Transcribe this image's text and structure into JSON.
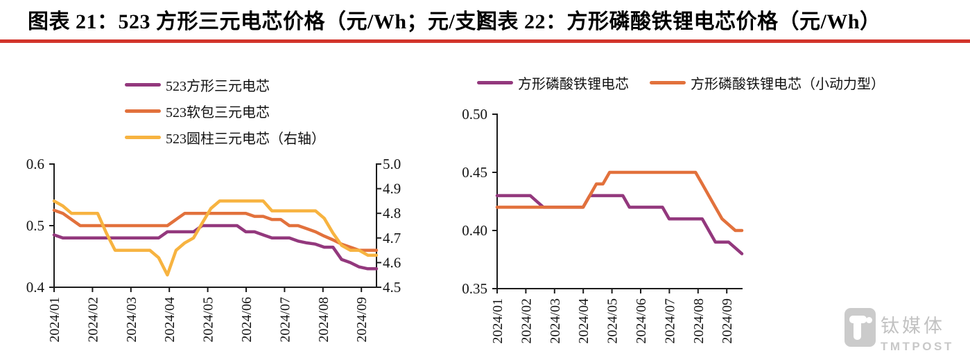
{
  "rule_color": "#d2342b",
  "axis_color": "#1b1b1b",
  "watermark": {
    "cn": "钛媒体",
    "en": "TMTPOST"
  },
  "chart_data": [
    {
      "type": "line",
      "title": "图表 21：523 方形三元电芯价格（元/Wh；元/支）",
      "legend_position": "top-left-vertical",
      "grid": false,
      "x_tick_labels": [
        "2024/01",
        "2024/02",
        "2024/03",
        "2024/04",
        "2024/05",
        "2024/06",
        "2024/07",
        "2024/08",
        "2024/09"
      ],
      "left_axis": {
        "min": 0.4,
        "max": 0.6,
        "tick_labels": [
          "0.6",
          "0.5",
          "0.4"
        ]
      },
      "right_axis": {
        "min": 4.5,
        "max": 5.0,
        "tick_labels": [
          "5.0",
          "4.9",
          "4.8",
          "4.7",
          "4.6",
          "4.5"
        ]
      },
      "series": [
        {
          "name": "523方形三元电芯",
          "axis": "left",
          "color": "#93387d",
          "values": [
            0.485,
            0.48,
            0.48,
            0.48,
            0.48,
            0.48,
            0.48,
            0.48,
            0.48,
            0.48,
            0.48,
            0.48,
            0.48,
            0.49,
            0.49,
            0.49,
            0.49,
            0.5,
            0.5,
            0.5,
            0.5,
            0.5,
            0.49,
            0.49,
            0.485,
            0.48,
            0.48,
            0.48,
            0.475,
            0.472,
            0.47,
            0.465,
            0.465,
            0.445,
            0.44,
            0.433,
            0.43,
            0.43
          ]
        },
        {
          "name": "523软包三元电芯",
          "axis": "left",
          "color": "#e2713c",
          "values": [
            0.525,
            0.52,
            0.51,
            0.5,
            0.5,
            0.5,
            0.5,
            0.5,
            0.5,
            0.5,
            0.5,
            0.5,
            0.5,
            0.5,
            0.51,
            0.52,
            0.52,
            0.52,
            0.52,
            0.52,
            0.52,
            0.52,
            0.52,
            0.515,
            0.515,
            0.51,
            0.51,
            0.5,
            0.5,
            0.495,
            0.49,
            0.483,
            0.477,
            0.47,
            0.465,
            0.46,
            0.46,
            0.46
          ]
        },
        {
          "name": "523圆柱三元电芯（右轴）",
          "axis": "right",
          "color": "#f7b340",
          "values": [
            4.85,
            4.83,
            4.8,
            4.8,
            4.8,
            4.8,
            4.72,
            4.65,
            4.65,
            4.65,
            4.65,
            4.65,
            4.62,
            4.55,
            4.65,
            4.68,
            4.7,
            4.76,
            4.82,
            4.85,
            4.85,
            4.85,
            4.85,
            4.85,
            4.85,
            4.81,
            4.81,
            4.81,
            4.81,
            4.81,
            4.81,
            4.78,
            4.72,
            4.67,
            4.65,
            4.65,
            4.63,
            4.63
          ]
        }
      ]
    },
    {
      "type": "line",
      "title": "图表 22：方形磷酸铁锂电芯价格（元/Wh）",
      "legend_position": "top-horizontal",
      "grid": false,
      "x_tick_labels": [
        "2024/01",
        "2024/02",
        "2024/03",
        "2024/04",
        "2024/05",
        "2024/06",
        "2024/07",
        "2024/08",
        "2024/09"
      ],
      "left_axis": {
        "min": 0.35,
        "max": 0.5,
        "tick_labels": [
          "0.50",
          "0.45",
          "0.40",
          "0.35"
        ]
      },
      "series": [
        {
          "name": "方形磷酸铁锂电芯",
          "axis": "left",
          "color": "#93387d",
          "values": [
            0.43,
            0.43,
            0.43,
            0.43,
            0.43,
            0.43,
            0.425,
            0.42,
            0.42,
            0.42,
            0.42,
            0.42,
            0.42,
            0.42,
            0.43,
            0.43,
            0.43,
            0.43,
            0.43,
            0.43,
            0.42,
            0.42,
            0.42,
            0.42,
            0.42,
            0.42,
            0.41,
            0.41,
            0.41,
            0.41,
            0.41,
            0.41,
            0.4,
            0.39,
            0.39,
            0.39,
            0.385,
            0.38
          ]
        },
        {
          "name": "方形磷酸铁锂电芯（小动力型）",
          "axis": "left",
          "color": "#e2713c",
          "values": [
            0.42,
            0.42,
            0.42,
            0.42,
            0.42,
            0.42,
            0.42,
            0.42,
            0.42,
            0.42,
            0.42,
            0.42,
            0.42,
            0.42,
            0.43,
            0.44,
            0.44,
            0.45,
            0.45,
            0.45,
            0.45,
            0.45,
            0.45,
            0.45,
            0.45,
            0.45,
            0.45,
            0.45,
            0.45,
            0.45,
            0.45,
            0.44,
            0.43,
            0.42,
            0.41,
            0.405,
            0.4,
            0.4
          ]
        }
      ]
    }
  ]
}
